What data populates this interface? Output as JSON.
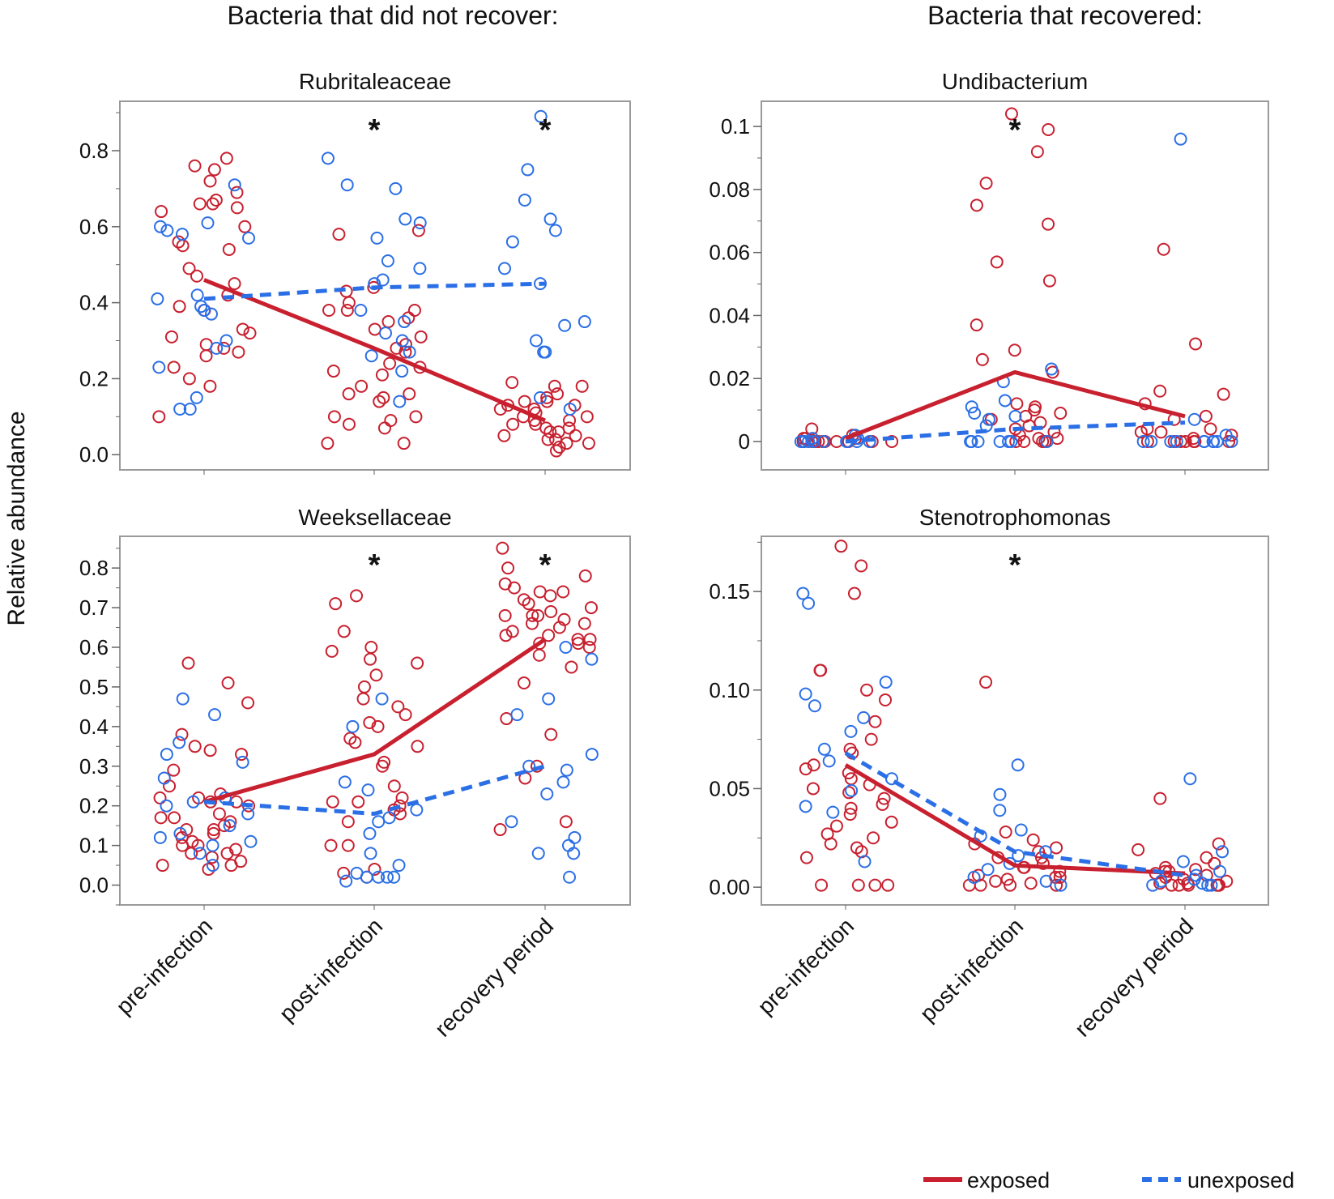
{
  "figure": {
    "left_heading": "Bacteria that did not recover:",
    "right_heading": "Bacteria that recovered:",
    "y_axis_title": "Relative abundance"
  },
  "legend": {
    "exposed_label": "exposed",
    "unexposed_label": "unexposed"
  },
  "colors": {
    "exposed": "#c8202f",
    "unexposed": "#2b6fe6",
    "frame": "#9a9a9a",
    "axis": "#666666"
  },
  "chart_data": [
    {
      "type": "scatter",
      "title": "Rubritaleaceae",
      "xlabel": "",
      "ylabel": "Relative abundance",
      "categories": [
        "pre-infection",
        "post-infection",
        "recovery period"
      ],
      "ylim": [
        -0.04,
        0.93
      ],
      "yticks": [
        0.0,
        0.2,
        0.4,
        0.6,
        0.8
      ],
      "ytick_labels": [
        "0.0",
        "0.2",
        "0.4",
        "0.6",
        "0.8"
      ],
      "significance": [
        "",
        "*",
        "*"
      ],
      "series": [
        {
          "name": "exposed",
          "means": [
            0.46,
            0.28,
            0.09
          ],
          "points": [
            [
              0.78,
              0.72,
              0.66,
              0.55,
              0.45,
              0.42,
              0.38,
              0.29,
              0.26,
              0.1,
              0.66,
              0.75,
              0.76,
              0.69,
              0.49,
              0.47,
              0.39,
              0.32,
              0.28,
              0.27,
              0.65,
              0.64,
              0.67,
              0.6,
              0.56,
              0.54,
              0.31,
              0.33,
              0.23,
              0.2,
              0.18
            ],
            [
              0.59,
              0.43,
              0.4,
              0.38,
              0.22,
              0.21,
              0.16,
              0.14,
              0.1,
              0.07,
              0.08,
              0.44,
              0.58,
              0.38,
              0.35,
              0.33,
              0.31,
              0.28,
              0.27,
              0.23,
              0.16,
              0.15,
              0.1,
              0.09,
              0.03,
              0.03,
              0.38,
              0.36,
              0.29,
              0.24,
              0.18
            ],
            [
              0.13,
              0.1,
              0.08,
              0.07,
              0.07,
              0.01,
              0.05,
              0.12,
              0.15,
              0.19,
              0.18,
              0.16,
              0.14,
              0.14,
              0.1,
              0.09,
              0.06,
              0.03,
              0.03,
              0.02,
              0.04,
              0.04,
              0.08,
              0.12,
              0.13,
              0.11,
              0.18,
              0.06,
              0.09,
              0.05
            ]
          ]
        },
        {
          "name": "unexposed",
          "means": [
            0.41,
            0.44,
            0.45
          ],
          "points": [
            [
              0.71,
              0.61,
              0.6,
              0.59,
              0.58,
              0.57,
              0.42,
              0.41,
              0.38,
              0.37,
              0.3,
              0.28,
              0.23,
              0.15,
              0.12,
              0.12,
              0.39
            ],
            [
              0.78,
              0.71,
              0.7,
              0.62,
              0.61,
              0.57,
              0.51,
              0.49,
              0.46,
              0.45,
              0.38,
              0.35,
              0.32,
              0.3,
              0.27,
              0.26,
              0.22,
              0.14
            ],
            [
              0.89,
              0.75,
              0.67,
              0.62,
              0.59,
              0.56,
              0.49,
              0.45,
              0.35,
              0.34,
              0.3,
              0.27,
              0.27,
              0.15,
              0.12
            ]
          ]
        }
      ]
    },
    {
      "type": "scatter",
      "title": "Undibacterium",
      "xlabel": "",
      "ylabel": "Relative abundance",
      "categories": [
        "pre-infection",
        "post-infection",
        "recovery period"
      ],
      "ylim": [
        -0.009,
        0.108
      ],
      "yticks": [
        0,
        0.02,
        0.04,
        0.06,
        0.08,
        0.1
      ],
      "ytick_labels": [
        "0",
        "0.02",
        "0.04",
        "0.06",
        "0.08",
        "0.1"
      ],
      "significance": [
        "",
        "*",
        ""
      ],
      "series": [
        {
          "name": "exposed",
          "means": [
            0.001,
            0.022,
            0.008
          ],
          "points": [
            [
              0,
              0,
              0,
              0,
              0,
              0,
              0,
              0,
              0,
              0,
              0,
              0.001,
              0.002,
              0.004,
              0.001,
              0,
              0.001
            ],
            [
              0.104,
              0.099,
              0.092,
              0.082,
              0.075,
              0.069,
              0.057,
              0.051,
              0.037,
              0.029,
              0.026,
              0.022,
              0.012,
              0.01,
              0.009,
              0.008,
              0.007,
              0.006,
              0.005,
              0.004,
              0.003,
              0.001,
              0,
              0,
              0,
              0,
              0.002,
              0.011,
              0.001
            ],
            [
              0.061,
              0.031,
              0.016,
              0.015,
              0.012,
              0.008,
              0.007,
              0.004,
              0.004,
              0.003,
              0.003,
              0.002,
              0.001,
              0,
              0,
              0,
              0,
              0,
              0,
              0
            ]
          ]
        },
        {
          "name": "unexposed",
          "means": [
            0.0,
            0.004,
            0.006
          ],
          "points": [
            [
              0,
              0,
              0,
              0,
              0,
              0,
              0,
              0,
              0,
              0.001,
              0.002,
              0.001
            ],
            [
              0.023,
              0.019,
              0.013,
              0.011,
              0.009,
              0.008,
              0.007,
              0.005,
              0,
              0,
              0,
              0,
              0,
              0,
              0
            ],
            [
              0.096,
              0.007,
              0.002,
              0,
              0,
              0,
              0,
              0,
              0,
              0,
              0,
              0,
              0
            ]
          ]
        }
      ]
    },
    {
      "type": "scatter",
      "title": "Weeksellaceae",
      "xlabel": "",
      "ylabel": "Relative abundance",
      "categories": [
        "pre-infection",
        "post-infection",
        "recovery period"
      ],
      "ylim": [
        -0.05,
        0.88
      ],
      "yticks": [
        0.0,
        0.1,
        0.2,
        0.3,
        0.4,
        0.5,
        0.6,
        0.7,
        0.8
      ],
      "ytick_labels": [
        "0.0",
        "0.1",
        "0.2",
        "0.3",
        "0.4",
        "0.5",
        "0.6",
        "0.7",
        "0.8"
      ],
      "significance": [
        "",
        "*",
        "*"
      ],
      "series": [
        {
          "name": "exposed",
          "means": [
            0.21,
            0.33,
            0.62
          ],
          "points": [
            [
              0.56,
              0.51,
              0.46,
              0.38,
              0.35,
              0.33,
              0.29,
              0.23,
              0.22,
              0.22,
              0.21,
              0.21,
              0.2,
              0.18,
              0.17,
              0.17,
              0.16,
              0.15,
              0.14,
              0.14,
              0.13,
              0.12,
              0.11,
              0.1,
              0.09,
              0.08,
              0.08,
              0.07,
              0.06,
              0.05,
              0.05,
              0.04,
              0.34,
              0.25,
              0.1
            ],
            [
              0.73,
              0.71,
              0.64,
              0.6,
              0.59,
              0.57,
              0.56,
              0.53,
              0.5,
              0.47,
              0.45,
              0.43,
              0.41,
              0.4,
              0.37,
              0.36,
              0.35,
              0.3,
              0.25,
              0.22,
              0.21,
              0.21,
              0.2,
              0.19,
              0.18,
              0.16,
              0.1,
              0.1,
              0.04,
              0.03,
              0.02,
              0.31
            ],
            [
              0.85,
              0.8,
              0.78,
              0.76,
              0.75,
              0.74,
              0.73,
              0.72,
              0.71,
              0.7,
              0.69,
              0.68,
              0.68,
              0.67,
              0.66,
              0.66,
              0.64,
              0.63,
              0.62,
              0.62,
              0.61,
              0.61,
              0.6,
              0.58,
              0.55,
              0.51,
              0.42,
              0.38,
              0.3,
              0.27,
              0.16,
              0.14,
              0.68,
              0.74,
              0.63,
              0.65
            ]
          ]
        },
        {
          "name": "unexposed",
          "means": [
            0.21,
            0.18,
            0.3
          ],
          "points": [
            [
              0.47,
              0.43,
              0.36,
              0.31,
              0.27,
              0.22,
              0.21,
              0.2,
              0.15,
              0.13,
              0.12,
              0.11,
              0.1,
              0.08,
              0.05,
              0.33,
              0.18
            ],
            [
              0.47,
              0.4,
              0.26,
              0.24,
              0.19,
              0.17,
              0.16,
              0.13,
              0.08,
              0.05,
              0.02,
              0.02,
              0.02,
              0.01,
              0.02,
              0.03
            ],
            [
              0.6,
              0.57,
              0.47,
              0.43,
              0.33,
              0.3,
              0.29,
              0.26,
              0.23,
              0.16,
              0.12,
              0.1,
              0.08,
              0.08,
              0.02
            ]
          ]
        }
      ]
    },
    {
      "type": "scatter",
      "title": "Stenotrophomonas",
      "xlabel": "",
      "ylabel": "Relative abundance",
      "categories": [
        "pre-infection",
        "post-infection",
        "recovery period"
      ],
      "ylim": [
        -0.009,
        0.178
      ],
      "yticks": [
        0.0,
        0.05,
        0.1,
        0.15
      ],
      "ytick_labels": [
        "0.00",
        "0.05",
        "0.10",
        "0.15"
      ],
      "significance": [
        "",
        "*",
        ""
      ],
      "series": [
        {
          "name": "exposed",
          "means": [
            0.062,
            0.011,
            0.007
          ],
          "points": [
            [
              0.173,
              0.163,
              0.149,
              0.11,
              0.11,
              0.1,
              0.095,
              0.084,
              0.075,
              0.07,
              0.068,
              0.062,
              0.06,
              0.058,
              0.055,
              0.052,
              0.05,
              0.048,
              0.045,
              0.042,
              0.04,
              0.037,
              0.033,
              0.031,
              0.027,
              0.025,
              0.022,
              0.02,
              0.018,
              0.015,
              0.001,
              0.001,
              0.001,
              0.001
            ],
            [
              0.104,
              0.028,
              0.024,
              0.022,
              0.02,
              0.018,
              0.015,
              0.012,
              0.01,
              0.008,
              0.006,
              0.005,
              0.004,
              0.003,
              0.002,
              0.001,
              0.001,
              0.001,
              0.001,
              0.015,
              0.01,
              0.005
            ],
            [
              0.045,
              0.022,
              0.019,
              0.015,
              0.012,
              0.01,
              0.009,
              0.008,
              0.007,
              0.005,
              0.004,
              0.003,
              0.002,
              0.002,
              0.001,
              0.001,
              0.001,
              0.001,
              0.001,
              0.001,
              0.008,
              0.006
            ]
          ]
        },
        {
          "name": "unexposed",
          "means": [
            0.068,
            0.018,
            0.006
          ],
          "points": [
            [
              0.149,
              0.144,
              0.104,
              0.098,
              0.092,
              0.086,
              0.079,
              0.07,
              0.064,
              0.055,
              0.049,
              0.041,
              0.038,
              0.013
            ],
            [
              0.062,
              0.047,
              0.039,
              0.029,
              0.026,
              0.018,
              0.016,
              0.012,
              0.009,
              0.005,
              0.003,
              0.001
            ],
            [
              0.055,
              0.018,
              0.013,
              0.008,
              0.006,
              0.004,
              0.003,
              0.002,
              0.001,
              0.001,
              0.001
            ]
          ]
        }
      ]
    }
  ]
}
